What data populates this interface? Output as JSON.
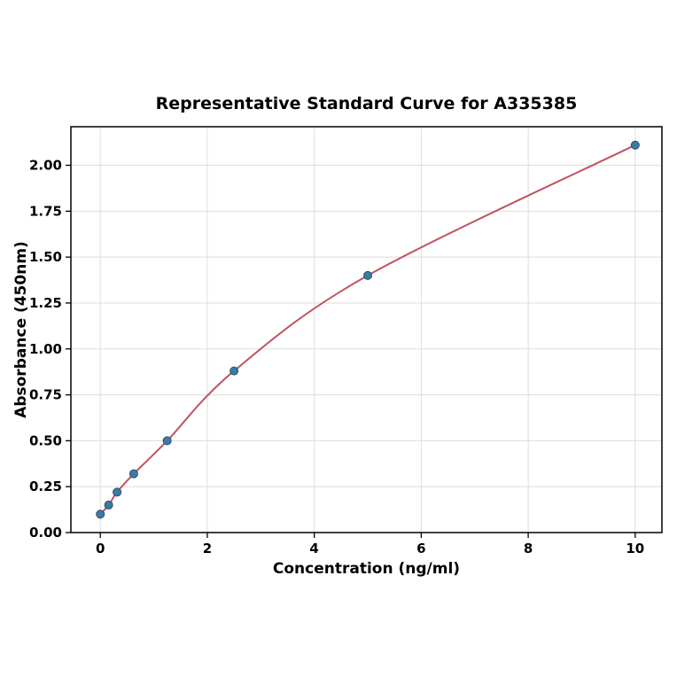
{
  "chart_data": {
    "type": "scatter",
    "title": "Representative Standard Curve for A335385",
    "xlabel": "Concentration (ng/ml)",
    "ylabel": "Absorbance (450nm)",
    "x": [
      0,
      0.156,
      0.313,
      0.625,
      1.25,
      2.5,
      5,
      10
    ],
    "y": [
      0.1,
      0.15,
      0.22,
      0.32,
      0.5,
      0.88,
      1.4,
      2.11
    ],
    "fit_curve": true,
    "legend": false,
    "grid": true,
    "xlim": [
      -0.55,
      10.5
    ],
    "ylim": [
      0,
      2.21
    ],
    "xticks": [
      0,
      2,
      4,
      6,
      8,
      10
    ],
    "xtick_labels": [
      "0",
      "2",
      "4",
      "6",
      "8",
      "10"
    ],
    "yticks": [
      0,
      0.25,
      0.5,
      0.75,
      1.0,
      1.25,
      1.5,
      1.75,
      2.0
    ],
    "ytick_labels": [
      "0.00",
      "0.25",
      "0.50",
      "0.75",
      "1.00",
      "1.25",
      "1.50",
      "1.75",
      "2.00"
    ],
    "colors": {
      "point_fill": "#3d7ba6",
      "point_edge": "#24516f",
      "curve": "#c0545e",
      "grid": "#dddddd",
      "spine": "#000000",
      "tick_text": "#000000",
      "background": "#ffffff"
    }
  }
}
